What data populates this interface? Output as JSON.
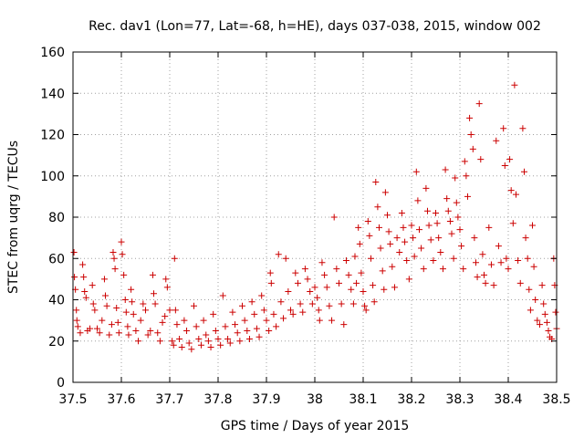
{
  "chart_data": {
    "type": "scatter",
    "title": "Rec. dav1 (Lon=77, Lat=-68, h=HE), days 037-038, 2015, window 002",
    "xlabel": "GPS time / Days of year 2015",
    "ylabel": "STEC from uqrg / TECUs",
    "xlim": [
      37.5,
      38.5
    ],
    "ylim": [
      0,
      160
    ],
    "grid": true,
    "xticks": [
      37.5,
      37.6,
      37.7,
      37.8,
      37.9,
      38,
      38.1,
      38.2,
      38.3,
      38.4,
      38.5
    ],
    "xtick_labels": [
      "37.5",
      "37.6",
      "37.7",
      "37.8",
      "37.9",
      "38",
      "38.1",
      "38.2",
      "38.3",
      "38.4",
      "38.5"
    ],
    "yticks": [
      0,
      20,
      40,
      60,
      80,
      100,
      120,
      140,
      160
    ],
    "ytick_labels": [
      "0",
      "20",
      "40",
      "60",
      "80",
      "100",
      "120",
      "140",
      "160"
    ],
    "marker": "+",
    "color": "#cc0000",
    "series": [
      {
        "name": "STEC",
        "points": [
          [
            37.502,
            63
          ],
          [
            37.503,
            51
          ],
          [
            37.505,
            45
          ],
          [
            37.507,
            35
          ],
          [
            37.508,
            30
          ],
          [
            37.51,
            27
          ],
          [
            37.515,
            24
          ],
          [
            37.52,
            57
          ],
          [
            37.522,
            51
          ],
          [
            37.524,
            44
          ],
          [
            37.527,
            41
          ],
          [
            37.53,
            25
          ],
          [
            37.535,
            26
          ],
          [
            37.54,
            47
          ],
          [
            37.542,
            38
          ],
          [
            37.545,
            35
          ],
          [
            37.55,
            26
          ],
          [
            37.555,
            24
          ],
          [
            37.56,
            30
          ],
          [
            37.565,
            50
          ],
          [
            37.567,
            42
          ],
          [
            37.57,
            37
          ],
          [
            37.575,
            23
          ],
          [
            37.58,
            28
          ],
          [
            37.583,
            63
          ],
          [
            37.585,
            60
          ],
          [
            37.587,
            55
          ],
          [
            37.59,
            36
          ],
          [
            37.593,
            29
          ],
          [
            37.595,
            24
          ],
          [
            37.6,
            68
          ],
          [
            37.602,
            62
          ],
          [
            37.605,
            52
          ],
          [
            37.608,
            40
          ],
          [
            37.61,
            34
          ],
          [
            37.613,
            27
          ],
          [
            37.615,
            23
          ],
          [
            37.62,
            45
          ],
          [
            37.622,
            39
          ],
          [
            37.625,
            33
          ],
          [
            37.63,
            25
          ],
          [
            37.635,
            20
          ],
          [
            37.64,
            30
          ],
          [
            37.645,
            38
          ],
          [
            37.65,
            35
          ],
          [
            37.655,
            23
          ],
          [
            37.66,
            25
          ],
          [
            37.665,
            52
          ],
          [
            37.667,
            43
          ],
          [
            37.67,
            38
          ],
          [
            37.675,
            24
          ],
          [
            37.68,
            20
          ],
          [
            37.685,
            29
          ],
          [
            37.69,
            32
          ],
          [
            37.692,
            50
          ],
          [
            37.695,
            46
          ],
          [
            37.7,
            35
          ],
          [
            37.705,
            20
          ],
          [
            37.708,
            18
          ],
          [
            37.71,
            60
          ],
          [
            37.712,
            35
          ],
          [
            37.715,
            28
          ],
          [
            37.72,
            21
          ],
          [
            37.725,
            17
          ],
          [
            37.73,
            30
          ],
          [
            37.735,
            25
          ],
          [
            37.74,
            19
          ],
          [
            37.745,
            16
          ],
          [
            37.75,
            37
          ],
          [
            37.755,
            27
          ],
          [
            37.76,
            21
          ],
          [
            37.765,
            18
          ],
          [
            37.77,
            30
          ],
          [
            37.775,
            23
          ],
          [
            37.78,
            20
          ],
          [
            37.785,
            17
          ],
          [
            37.79,
            33
          ],
          [
            37.795,
            25
          ],
          [
            37.8,
            21
          ],
          [
            37.805,
            18
          ],
          [
            37.81,
            42
          ],
          [
            37.815,
            27
          ],
          [
            37.82,
            21
          ],
          [
            37.825,
            19
          ],
          [
            37.83,
            34
          ],
          [
            37.835,
            28
          ],
          [
            37.84,
            24
          ],
          [
            37.845,
            20
          ],
          [
            37.85,
            37
          ],
          [
            37.855,
            30
          ],
          [
            37.86,
            25
          ],
          [
            37.865,
            21
          ],
          [
            37.87,
            39
          ],
          [
            37.875,
            33
          ],
          [
            37.88,
            26
          ],
          [
            37.885,
            22
          ],
          [
            37.89,
            42
          ],
          [
            37.895,
            35
          ],
          [
            37.9,
            30
          ],
          [
            37.905,
            25
          ],
          [
            37.908,
            53
          ],
          [
            37.91,
            48
          ],
          [
            37.915,
            33
          ],
          [
            37.92,
            27
          ],
          [
            37.925,
            62
          ],
          [
            37.93,
            39
          ],
          [
            37.935,
            31
          ],
          [
            37.94,
            60
          ],
          [
            37.945,
            44
          ],
          [
            37.95,
            35
          ],
          [
            37.955,
            33
          ],
          [
            37.96,
            53
          ],
          [
            37.965,
            48
          ],
          [
            37.97,
            38
          ],
          [
            37.975,
            34
          ],
          [
            37.98,
            55
          ],
          [
            37.985,
            50
          ],
          [
            37.99,
            44
          ],
          [
            37.995,
            38
          ],
          [
            38.0,
            46
          ],
          [
            38.005,
            41
          ],
          [
            38.008,
            35
          ],
          [
            38.01,
            30
          ],
          [
            38.015,
            58
          ],
          [
            38.02,
            52
          ],
          [
            38.025,
            46
          ],
          [
            38.03,
            37
          ],
          [
            38.035,
            30
          ],
          [
            38.04,
            80
          ],
          [
            38.045,
            55
          ],
          [
            38.05,
            48
          ],
          [
            38.055,
            38
          ],
          [
            38.06,
            28
          ],
          [
            38.065,
            59
          ],
          [
            38.07,
            52
          ],
          [
            38.075,
            45
          ],
          [
            38.08,
            38
          ],
          [
            38.083,
            61
          ],
          [
            38.086,
            48
          ],
          [
            38.09,
            75
          ],
          [
            38.093,
            67
          ],
          [
            38.096,
            53
          ],
          [
            38.1,
            44
          ],
          [
            38.103,
            37
          ],
          [
            38.106,
            35
          ],
          [
            38.11,
            78
          ],
          [
            38.113,
            71
          ],
          [
            38.116,
            60
          ],
          [
            38.12,
            47
          ],
          [
            38.123,
            39
          ],
          [
            38.126,
            97
          ],
          [
            38.13,
            85
          ],
          [
            38.133,
            75
          ],
          [
            38.136,
            65
          ],
          [
            38.14,
            54
          ],
          [
            38.143,
            45
          ],
          [
            38.146,
            92
          ],
          [
            38.15,
            81
          ],
          [
            38.153,
            73
          ],
          [
            38.156,
            67
          ],
          [
            38.16,
            56
          ],
          [
            38.165,
            46
          ],
          [
            38.17,
            70
          ],
          [
            38.175,
            63
          ],
          [
            38.18,
            82
          ],
          [
            38.183,
            75
          ],
          [
            38.186,
            68
          ],
          [
            38.19,
            59
          ],
          [
            38.195,
            50
          ],
          [
            38.2,
            76
          ],
          [
            38.203,
            70
          ],
          [
            38.206,
            61
          ],
          [
            38.21,
            102
          ],
          [
            38.213,
            88
          ],
          [
            38.216,
            74
          ],
          [
            38.22,
            65
          ],
          [
            38.225,
            55
          ],
          [
            38.23,
            94
          ],
          [
            38.233,
            83
          ],
          [
            38.236,
            76
          ],
          [
            38.24,
            69
          ],
          [
            38.245,
            59
          ],
          [
            38.25,
            82
          ],
          [
            38.253,
            77
          ],
          [
            38.256,
            70
          ],
          [
            38.26,
            63
          ],
          [
            38.265,
            55
          ],
          [
            38.27,
            103
          ],
          [
            38.273,
            89
          ],
          [
            38.276,
            83
          ],
          [
            38.28,
            78
          ],
          [
            38.283,
            72
          ],
          [
            38.287,
            60
          ],
          [
            38.29,
            99
          ],
          [
            38.293,
            87
          ],
          [
            38.296,
            80
          ],
          [
            38.3,
            74
          ],
          [
            38.303,
            66
          ],
          [
            38.307,
            55
          ],
          [
            38.31,
            107
          ],
          [
            38.313,
            100
          ],
          [
            38.316,
            90
          ],
          [
            38.32,
            128
          ],
          [
            38.323,
            120
          ],
          [
            38.327,
            113
          ],
          [
            38.33,
            70
          ],
          [
            38.333,
            58
          ],
          [
            38.336,
            51
          ],
          [
            38.34,
            135
          ],
          [
            38.343,
            108
          ],
          [
            38.347,
            62
          ],
          [
            38.35,
            52
          ],
          [
            38.353,
            48
          ],
          [
            38.36,
            75
          ],
          [
            38.365,
            57
          ],
          [
            38.37,
            47
          ],
          [
            38.375,
            117
          ],
          [
            38.38,
            66
          ],
          [
            38.385,
            58
          ],
          [
            38.39,
            123
          ],
          [
            38.393,
            105
          ],
          [
            38.396,
            60
          ],
          [
            38.4,
            55
          ],
          [
            38.403,
            108
          ],
          [
            38.406,
            93
          ],
          [
            38.41,
            77
          ],
          [
            38.413,
            144
          ],
          [
            38.416,
            91
          ],
          [
            38.42,
            59
          ],
          [
            38.425,
            48
          ],
          [
            38.43,
            123
          ],
          [
            38.433,
            102
          ],
          [
            38.436,
            70
          ],
          [
            38.44,
            60
          ],
          [
            38.443,
            45
          ],
          [
            38.446,
            35
          ],
          [
            38.45,
            76
          ],
          [
            38.453,
            56
          ],
          [
            38.456,
            40
          ],
          [
            38.46,
            30
          ],
          [
            38.465,
            28
          ],
          [
            38.47,
            47
          ],
          [
            38.473,
            38
          ],
          [
            38.476,
            33
          ],
          [
            38.48,
            29
          ],
          [
            38.483,
            25
          ],
          [
            38.486,
            22
          ],
          [
            38.49,
            21
          ],
          [
            38.494,
            60
          ],
          [
            38.496,
            47
          ],
          [
            38.498,
            34
          ],
          [
            38.5,
            26
          ],
          [
            38.503,
            20
          ]
        ]
      }
    ]
  }
}
